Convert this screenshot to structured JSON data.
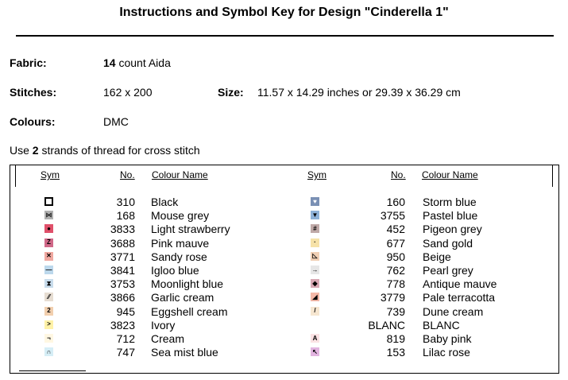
{
  "title": "Instructions and Symbol Key for Design \"Cinderella 1\"",
  "fabric": {
    "label": "Fabric:",
    "count": "14",
    "type": "count Aida"
  },
  "stitches": {
    "label": "Stitches:",
    "value": "162 x 200"
  },
  "size": {
    "label": "Size:",
    "value": "11.57 x 14.29 inches or 29.39 x 36.29 cm"
  },
  "colours": {
    "label": "Colours:",
    "value": "DMC"
  },
  "strands": {
    "prefix": "Use",
    "count": "2",
    "suffix": "strands of thread for cross stitch"
  },
  "table": {
    "headers": {
      "sym": "Sym",
      "no": "No.",
      "name": "Colour Name"
    },
    "left": [
      {
        "no": "310",
        "name": "Black",
        "bg": "#ffffff",
        "fg": "#000000",
        "glyph": "",
        "border": "#000000",
        "icon": "hollow-square-icon"
      },
      {
        "no": "168",
        "name": "Mouse grey",
        "bg": "#b0b0b0",
        "fg": "#202020",
        "glyph": "⋈",
        "icon": "bowtie-icon"
      },
      {
        "no": "3833",
        "name": "Light strawberry",
        "bg": "#e0506a",
        "fg": "#000000",
        "glyph": "●",
        "icon": "dot-icon"
      },
      {
        "no": "3688",
        "name": "Pink mauve",
        "bg": "#d06888",
        "fg": "#000000",
        "glyph": "Z",
        "icon": "z-icon"
      },
      {
        "no": "3771",
        "name": "Sandy rose",
        "bg": "#f0a8a0",
        "fg": "#000000",
        "glyph": "✕",
        "icon": "cross-icon"
      },
      {
        "no": "3841",
        "name": "Igloo blue",
        "bg": "#bcd8ec",
        "fg": "#000000",
        "glyph": "—",
        "icon": "dash-icon"
      },
      {
        "no": "3753",
        "name": "Moonlight blue",
        "bg": "#c8dcec",
        "fg": "#000000",
        "glyph": "⧗",
        "icon": "hourglass-icon"
      },
      {
        "no": "3866",
        "name": "Garlic cream",
        "bg": "#e6ddd2",
        "fg": "#000000",
        "glyph": "⁄⁄",
        "icon": "double-slash-icon"
      },
      {
        "no": "945",
        "name": "Eggshell cream",
        "bg": "#f2cfae",
        "fg": "#000000",
        "glyph": "2",
        "icon": "two-icon"
      },
      {
        "no": "3823",
        "name": "Ivory",
        "bg": "#fff2a8",
        "fg": "#000000",
        "glyph": ">",
        "icon": "greater-than-icon"
      },
      {
        "no": "712",
        "name": "Cream",
        "bg": "#fff7e2",
        "fg": "#000000",
        "glyph": "¬",
        "icon": "corner-icon"
      },
      {
        "no": "747",
        "name": "Sea mist blue",
        "bg": "#d6eef6",
        "fg": "#000000",
        "glyph": "∩",
        "icon": "arch-icon"
      }
    ],
    "right": [
      {
        "no": "160",
        "name": "Storm blue",
        "bg": "#7a90b4",
        "fg": "#ffffff",
        "glyph": "♥",
        "icon": "heart-icon"
      },
      {
        "no": "3755",
        "name": "Pastel blue",
        "bg": "#8fb2d8",
        "fg": "#000000",
        "glyph": "▼",
        "icon": "down-triangle-icon"
      },
      {
        "no": "452",
        "name": "Pigeon grey",
        "bg": "#c0aaa8",
        "fg": "#000000",
        "glyph": "#",
        "icon": "hash-icon"
      },
      {
        "no": "677",
        "name": "Sand gold",
        "bg": "#f6e2a8",
        "fg": "#000000",
        "glyph": "·",
        "icon": "small-dot-icon"
      },
      {
        "no": "950",
        "name": "Beige",
        "bg": "#f0cfb4",
        "fg": "#000000",
        "glyph": "◺",
        "icon": "triangle-corner-icon"
      },
      {
        "no": "762",
        "name": "Pearl grey",
        "bg": "#e6e6e6",
        "fg": "#000000",
        "glyph": "→",
        "icon": "arrow-right-icon"
      },
      {
        "no": "778",
        "name": "Antique mauve",
        "bg": "#d8a8b4",
        "fg": "#000000",
        "glyph": "◆",
        "icon": "diamond-icon"
      },
      {
        "no": "3779",
        "name": "Pale terracotta",
        "bg": "#f4b8a8",
        "fg": "#000000",
        "glyph": "◢",
        "icon": "wedge-icon"
      },
      {
        "no": "739",
        "name": "Dune cream",
        "bg": "#f6e6d0",
        "fg": "#000000",
        "glyph": "/",
        "icon": "slash-icon"
      },
      {
        "no": "BLANC",
        "name": "BLANC",
        "bg": "",
        "fg": "",
        "glyph": "",
        "icon": ""
      },
      {
        "no": "819",
        "name": "Baby pink",
        "bg": "#fbe2e4",
        "fg": "#000000",
        "glyph": "A",
        "icon": "a-icon"
      },
      {
        "no": "153",
        "name": "Lilac rose",
        "bg": "#e2b4e0",
        "fg": "#000000",
        "glyph": "↖",
        "icon": "arrow-up-left-icon"
      }
    ]
  }
}
